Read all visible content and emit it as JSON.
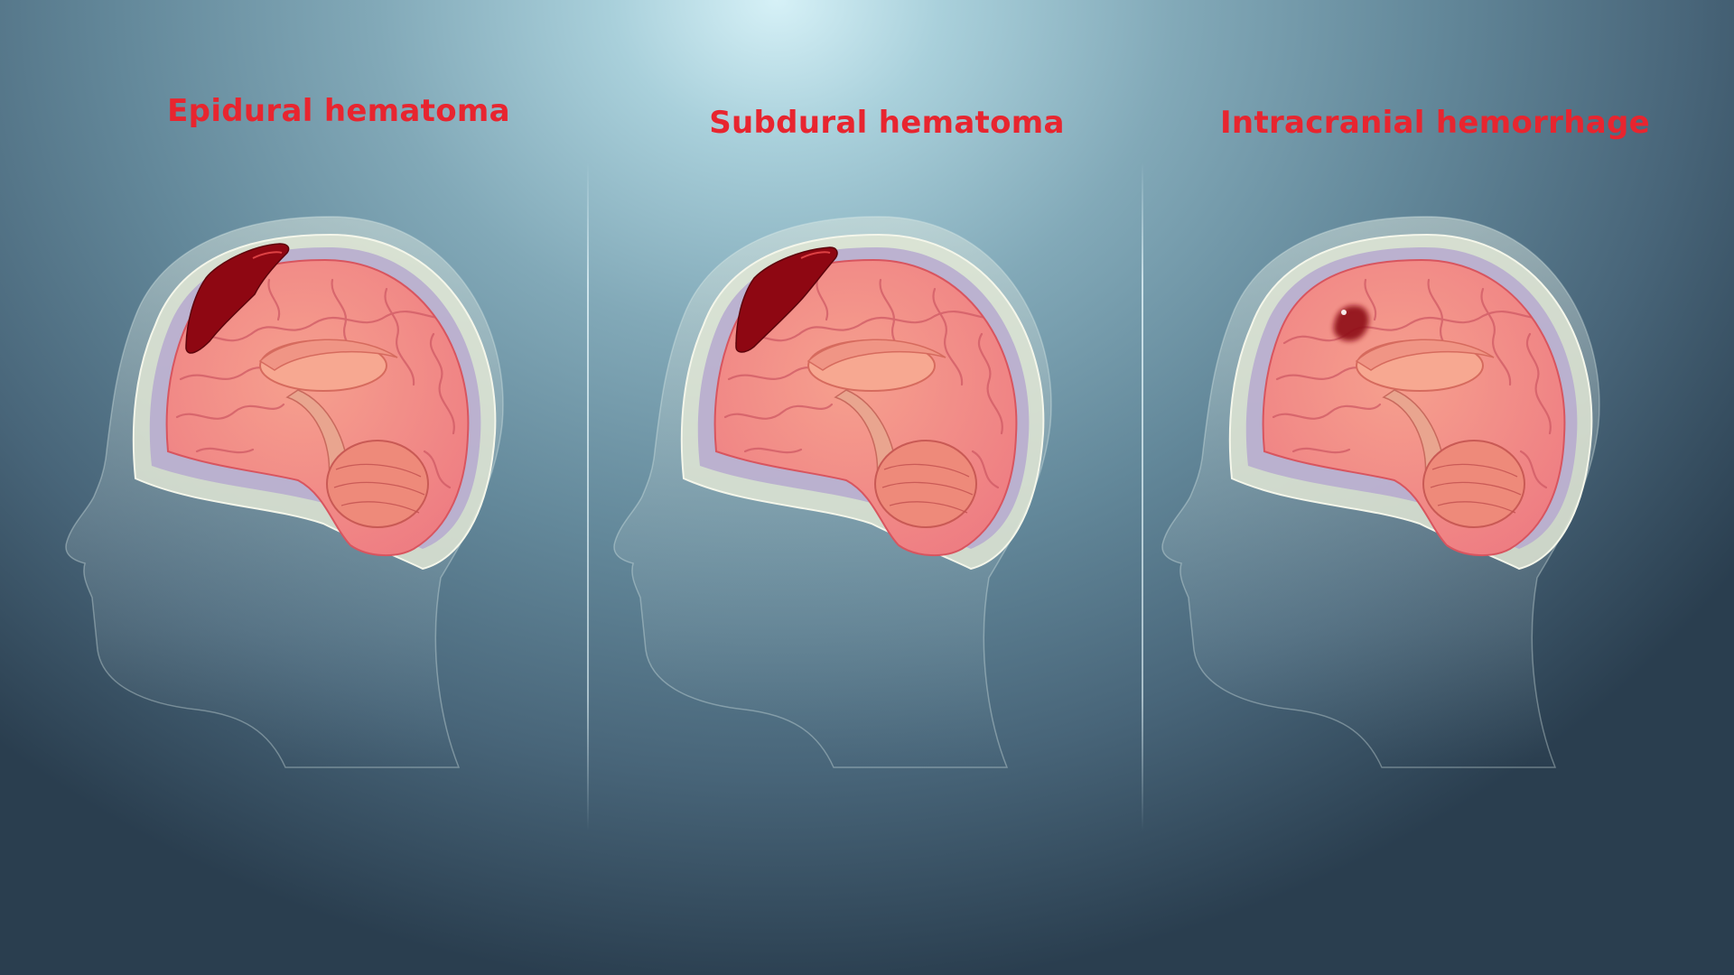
{
  "colors": {
    "label": "#e8252f",
    "background_highlight": "#d6f1f7",
    "background_dark": "#2a3e4f",
    "brain": "#ee7c82",
    "blood": "#8e0712",
    "skull": "#e0e6d5",
    "dura": "#b6a9cf"
  },
  "panels": [
    {
      "title": "Epidural hematoma",
      "bleed": "epidural"
    },
    {
      "title": "Subdural hematoma",
      "bleed": "subdural"
    },
    {
      "title": "Intracranial hemorrhage",
      "bleed": "intracranial"
    }
  ]
}
